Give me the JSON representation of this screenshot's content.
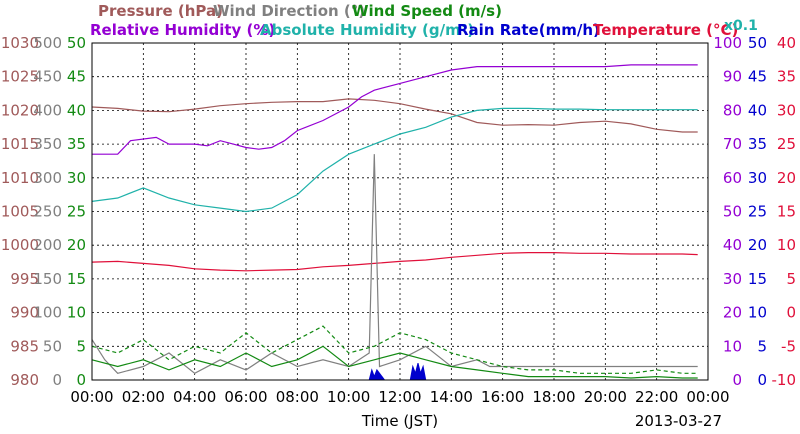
{
  "chart_data": {
    "type": "line",
    "title_rows": [
      [
        {
          "text": "Pressure (hPa)",
          "color": "#a05a5a"
        },
        {
          "text": "Wind Direction (°)",
          "color": "#808080"
        },
        {
          "text": "Wind Speed (m/s)",
          "color": "#138a13"
        }
      ],
      [
        {
          "text": "Relative Humidity (%)",
          "color": "#9400d3"
        },
        {
          "text": "Absolute Humidity (g/m³)",
          "color": "#20b2aa"
        },
        {
          "text": "Rain Rate(mm/h)",
          "color": "#0000cd"
        },
        {
          "text": "Temperature (°C)",
          "color": "#e0103a"
        }
      ]
    ],
    "corner_note": "x0.1",
    "xlabel": "Time (JST)",
    "date": "2013-03-27",
    "x_ticks": [
      "00:00",
      "02:00",
      "04:00",
      "06:00",
      "08:00",
      "10:00",
      "12:00",
      "14:00",
      "16:00",
      "18:00",
      "20:00",
      "22:00",
      "00:00"
    ],
    "xlim": [
      0,
      24
    ],
    "y_axes": [
      {
        "name": "pressure",
        "color": "#a05a5a",
        "ticks": [
          "980",
          "985",
          "990",
          "995",
          "1000",
          "1005",
          "1010",
          "1015",
          "1020",
          "1025",
          "1030"
        ],
        "ylim": [
          980,
          1030
        ]
      },
      {
        "name": "wind_direction",
        "color": "#808080",
        "ticks": [
          "0",
          "50",
          "100",
          "150",
          "200",
          "250",
          "300",
          "350",
          "400",
          "450",
          "500"
        ],
        "ylim": [
          0,
          500
        ]
      },
      {
        "name": "wind_speed",
        "color": "#138a13",
        "ticks": [
          "0",
          "5",
          "10",
          "15",
          "20",
          "25",
          "30",
          "35",
          "40",
          "45",
          "50"
        ],
        "ylim": [
          0,
          50
        ]
      },
      {
        "name": "humidity",
        "color": "#9400d3",
        "ticks": [
          "0",
          "10",
          "20",
          "30",
          "40",
          "50",
          "60",
          "70",
          "80",
          "90",
          "100"
        ],
        "ylim": [
          0,
          100
        ]
      },
      {
        "name": "rain_rate",
        "color": "#0000cd",
        "ticks": [
          "0",
          "5",
          "10",
          "15",
          "20",
          "25",
          "30",
          "35",
          "40",
          "45",
          "50"
        ],
        "ylim": [
          0,
          50
        ]
      },
      {
        "name": "temperature",
        "color": "#e0103a",
        "ticks": [
          "-10",
          "-5",
          "0",
          "5",
          "10",
          "15",
          "20",
          "25",
          "30",
          "35",
          "40"
        ],
        "ylim": [
          -10,
          40
        ]
      }
    ],
    "grid": true,
    "series": [
      {
        "name": "Pressure (hPa)",
        "color": "#a05a5a",
        "axis": 0,
        "x": [
          0,
          1,
          2,
          3,
          4,
          5,
          6,
          7,
          8,
          9,
          10,
          11,
          12,
          13,
          14,
          15,
          16,
          17,
          18,
          19,
          20,
          21,
          22,
          23,
          23.6
        ],
        "y": [
          1020.5,
          1020.3,
          1019.9,
          1019.8,
          1020.2,
          1020.7,
          1021.0,
          1021.2,
          1021.3,
          1021.3,
          1021.7,
          1021.5,
          1021.0,
          1020.2,
          1019.5,
          1018.2,
          1017.8,
          1017.9,
          1017.8,
          1018.2,
          1018.4,
          1018.0,
          1017.2,
          1016.8,
          1016.8
        ]
      },
      {
        "name": "Absolute Humidity (g/m³)",
        "color": "#20b2aa",
        "axis": 2,
        "x": [
          0,
          1,
          2,
          3,
          4,
          5,
          6,
          7,
          8,
          9,
          10,
          11,
          12,
          13,
          14,
          15,
          16,
          17,
          18,
          19,
          20,
          21,
          22,
          23,
          23.6
        ],
        "y": [
          26.5,
          27,
          28.5,
          27,
          26,
          25.5,
          25,
          25.5,
          27.5,
          31,
          33.5,
          35,
          36.5,
          37.5,
          39,
          40,
          40.3,
          40.3,
          40.2,
          40.2,
          40.1,
          40.1,
          40.1,
          40.1,
          40.1
        ]
      },
      {
        "name": "Relative Humidity (%)",
        "color": "#9400d3",
        "axis": 3,
        "x": [
          0,
          1,
          1.5,
          2.5,
          3,
          4,
          4.5,
          5,
          5.5,
          6,
          6.5,
          7,
          7.5,
          8,
          9,
          10,
          10.5,
          11,
          12,
          13,
          14,
          15,
          16,
          17,
          18,
          19,
          20,
          21,
          22,
          23,
          23.6
        ],
        "y": [
          67,
          67,
          71,
          72,
          70,
          70,
          69.5,
          71,
          70,
          69,
          68.5,
          69,
          71,
          74,
          77,
          81,
          84,
          86,
          88,
          90,
          92,
          93,
          93,
          93,
          93,
          93,
          93,
          93.5,
          93.5,
          93.5,
          93.5
        ]
      },
      {
        "name": "Temperature (°C)",
        "color": "#e0103a",
        "axis": 5,
        "x": [
          0,
          1,
          2,
          3,
          4,
          5,
          6,
          7,
          8,
          9,
          10,
          11,
          12,
          13,
          14,
          15,
          16,
          17,
          18,
          19,
          20,
          21,
          22,
          23,
          23.6
        ],
        "y": [
          7.5,
          7.6,
          7.3,
          7.0,
          6.5,
          6.3,
          6.2,
          6.3,
          6.4,
          6.8,
          7.0,
          7.3,
          7.6,
          7.8,
          8.2,
          8.5,
          8.8,
          8.9,
          8.9,
          8.8,
          8.8,
          8.7,
          8.7,
          8.7,
          8.6
        ]
      },
      {
        "name": "Wind Direction (°)",
        "color": "#808080",
        "axis": 1,
        "x": [
          0,
          0.5,
          1,
          2,
          3,
          4,
          5,
          6,
          7,
          8,
          9,
          10,
          10.8,
          11,
          11.2,
          12,
          13,
          14,
          15,
          15.5,
          16,
          18,
          20,
          22,
          23.6
        ],
        "y": [
          60,
          30,
          10,
          20,
          40,
          10,
          30,
          15,
          40,
          20,
          30,
          20,
          40,
          335,
          20,
          30,
          50,
          20,
          30,
          20,
          20,
          20,
          20,
          20,
          20
        ]
      },
      {
        "name": "Wind Speed (m/s)",
        "color": "#138a13",
        "axis": 2,
        "x": [
          0,
          1,
          2,
          3,
          4,
          5,
          6,
          7,
          8,
          9,
          10,
          11,
          12,
          13,
          14,
          15,
          16,
          17,
          18,
          19,
          20,
          21,
          22,
          23,
          23.6
        ],
        "y": [
          3,
          2,
          3,
          1.5,
          3,
          2,
          4,
          2,
          3,
          5,
          2,
          3,
          4,
          3,
          2,
          1.5,
          1,
          0.5,
          0.5,
          0.5,
          0.5,
          0.3,
          0.5,
          0.3,
          0.3
        ]
      },
      {
        "name": "Wind Speed Max (m/s)",
        "color": "#138a13",
        "axis": 2,
        "dashed": true,
        "x": [
          0,
          1,
          2,
          3,
          4,
          5,
          6,
          7,
          8,
          9,
          10,
          11,
          12,
          13,
          14,
          15,
          16,
          17,
          18,
          19,
          20,
          21,
          22,
          23,
          23.6
        ],
        "y": [
          5,
          4,
          6,
          3,
          5,
          4,
          7,
          4,
          6,
          8,
          4,
          5,
          7,
          6,
          4,
          3,
          2,
          1.5,
          1.5,
          1,
          1,
          1,
          1.5,
          1,
          1
        ]
      },
      {
        "name": "Rain Rate(mm/h)",
        "color": "#0000cd",
        "axis": 4,
        "type": "area",
        "x": [
          10.8,
          10.9,
          11.0,
          11.1,
          11.3,
          11.4,
          12.4,
          12.5,
          12.6,
          12.7,
          12.8,
          12.9,
          13.0
        ],
        "y": [
          0,
          1.5,
          0.5,
          1.5,
          0.5,
          0,
          0,
          2,
          1,
          2.5,
          1,
          2,
          0
        ]
      }
    ]
  }
}
